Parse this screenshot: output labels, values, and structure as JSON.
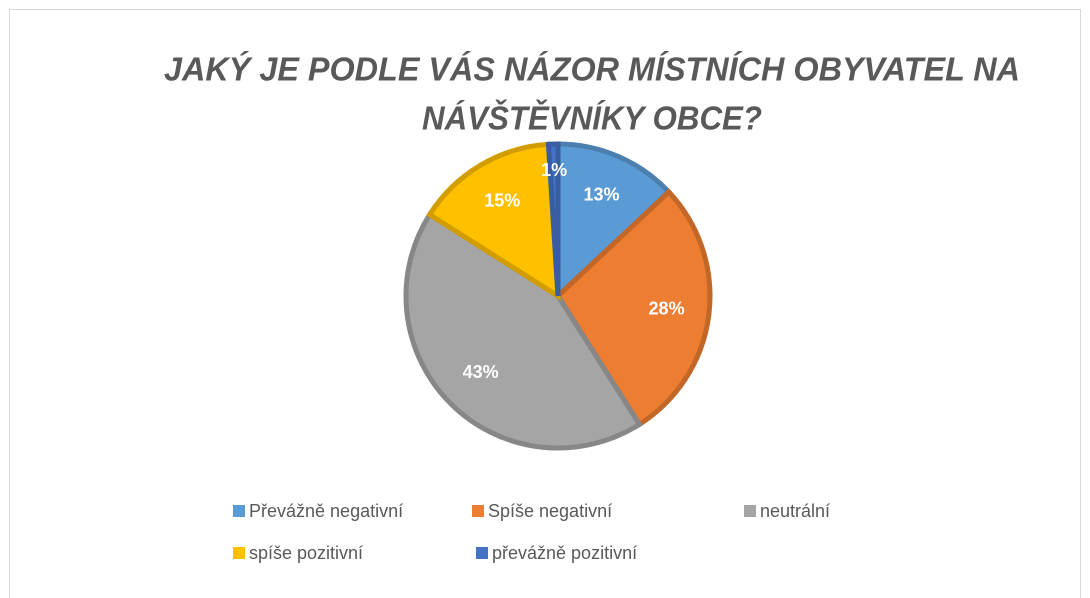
{
  "chart_data": {
    "type": "pie",
    "title": [
      "JAKÝ JE PODLE VÁS NÁZOR MÍSTNÍCH OBYVATEL NA",
      "NÁVŠTĚVNÍKY OBCE?"
    ],
    "categories": [
      "Převážně negativní",
      "Spíše negativní",
      "neutrální",
      "spíše pozitivní",
      "převážně pozitivní"
    ],
    "values": [
      13,
      28,
      43,
      15,
      1
    ],
    "value_labels": [
      "13%",
      "28%",
      "43%",
      "15%",
      "1%"
    ],
    "colors": [
      "#5b9bd5",
      "#ed7d31",
      "#a5a5a5",
      "#ffc000",
      "#4472c4"
    ],
    "legend": "bottom"
  }
}
